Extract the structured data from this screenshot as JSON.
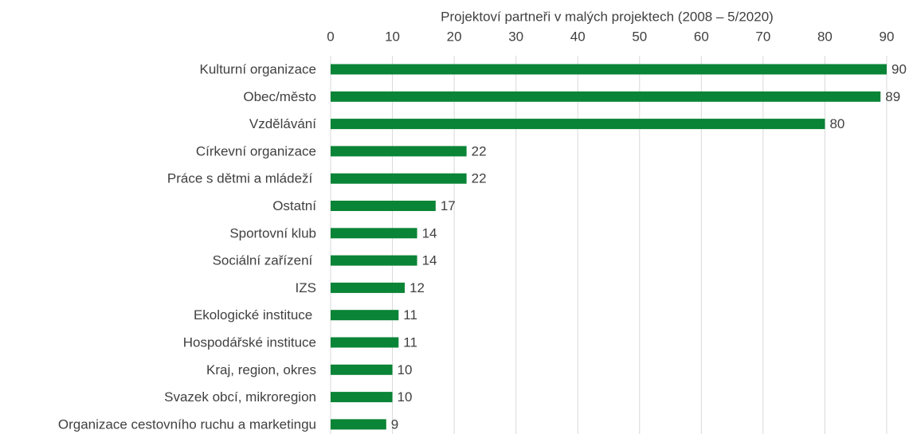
{
  "chart_data": {
    "type": "bar",
    "orientation": "horizontal",
    "title": "Projektoví partneři v malých projektech (2008 – 5/2020)",
    "categories": [
      "Kulturní organizace",
      "Obec/město",
      "Vzdělávání",
      "Církevní organizace",
      "Práce s dětmi a mládeží ",
      "Ostatní",
      "Sportovní klub",
      "Sociální zařízení ",
      "IZS",
      "Ekologické instituce ",
      "Hospodářské instituce",
      "Kraj, region, okres",
      "Svazek obcí, mikroregion",
      "Organizace cestovního ruchu a marketingu"
    ],
    "values": [
      90,
      89,
      80,
      22,
      22,
      17,
      14,
      14,
      12,
      11,
      11,
      10,
      10,
      9
    ],
    "color": "#0a8436",
    "xlim": [
      0,
      90
    ],
    "xticks": [
      0,
      10,
      20,
      30,
      40,
      50,
      60,
      70,
      80,
      90
    ],
    "grid": true
  }
}
